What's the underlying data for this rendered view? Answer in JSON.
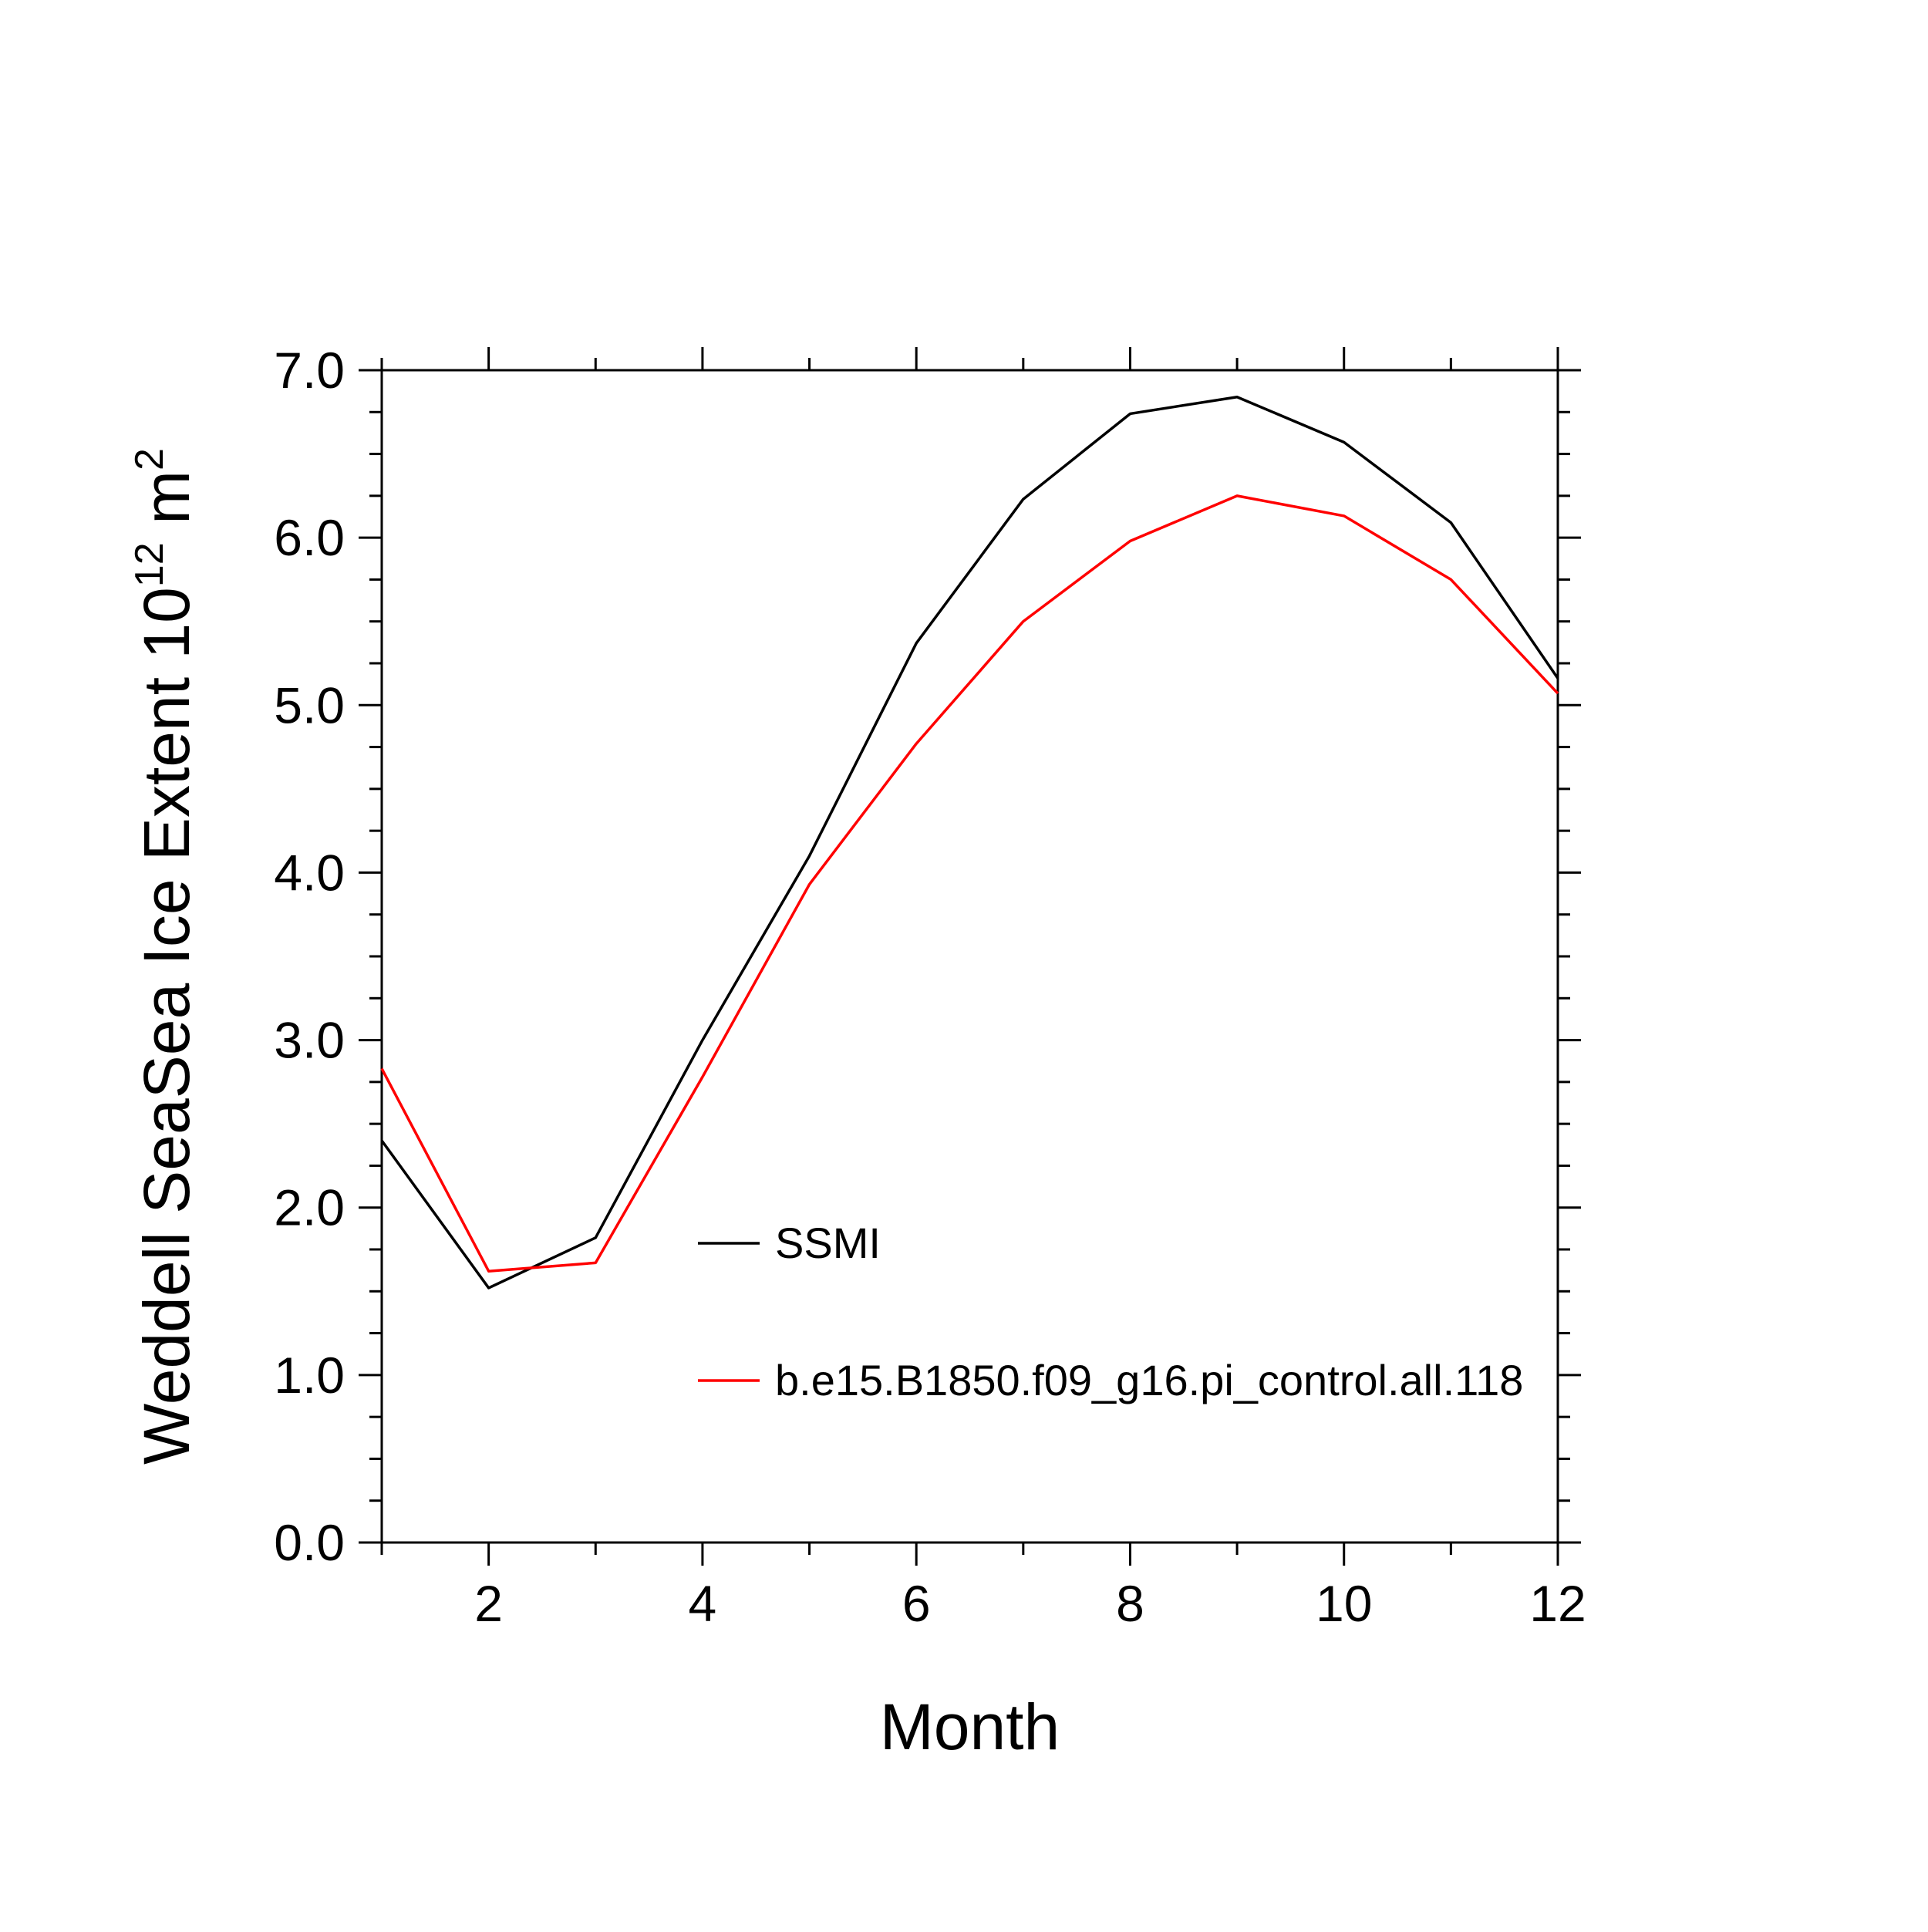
{
  "chart_data": {
    "type": "line",
    "x": [
      1,
      2,
      3,
      4,
      5,
      6,
      7,
      8,
      9,
      10,
      11,
      12
    ],
    "series": [
      {
        "name": "SSMI",
        "color": "#000000",
        "values": [
          2.4,
          1.52,
          1.82,
          3.0,
          4.1,
          5.37,
          6.23,
          6.74,
          6.84,
          6.57,
          6.09,
          5.16
        ]
      },
      {
        "name": "b.e15.B1850.f09_g16.pi_control.all.118",
        "color": "#ff0000",
        "values": [
          2.83,
          1.62,
          1.67,
          2.78,
          3.93,
          4.77,
          5.5,
          5.98,
          6.25,
          6.13,
          5.75,
          5.07
        ]
      }
    ],
    "title": "",
    "xlabel": "Month",
    "ylabel": "Weddell SeaSea Ice Extent 10¹² m²",
    "ylabel_parts": [
      {
        "t": "Weddell SeaSea Ice Extent 10"
      },
      {
        "t": "12",
        "sup": true
      },
      {
        "t": " m"
      },
      {
        "t": "2",
        "sup": true
      }
    ],
    "xlim": [
      1,
      12
    ],
    "ylim": [
      0.0,
      7.0
    ],
    "x_major_ticks": [
      2,
      4,
      6,
      8,
      10,
      12
    ],
    "x_tick_labels": [
      "2",
      "4",
      "6",
      "8",
      "10",
      "12"
    ],
    "x_minor_ticks": [
      1,
      3,
      5,
      7,
      9,
      11
    ],
    "y_major_ticks": [
      0,
      1,
      2,
      3,
      4,
      5,
      6,
      7
    ],
    "y_tick_labels": [
      "0.0",
      "1.0",
      "2.0",
      "3.0",
      "4.0",
      "5.0",
      "6.0",
      "7.0"
    ],
    "y_minor_step": 0.25,
    "grid": false,
    "legend_position": "inside-lower-middle",
    "legend": [
      {
        "label": "SSMI",
        "color": "#000000"
      },
      {
        "label": "b.e15.B1850.f09_g16.pi_control.all.118",
        "color": "#ff0000"
      }
    ],
    "frame_color": "#000000",
    "background_color": "#ffffff"
  }
}
